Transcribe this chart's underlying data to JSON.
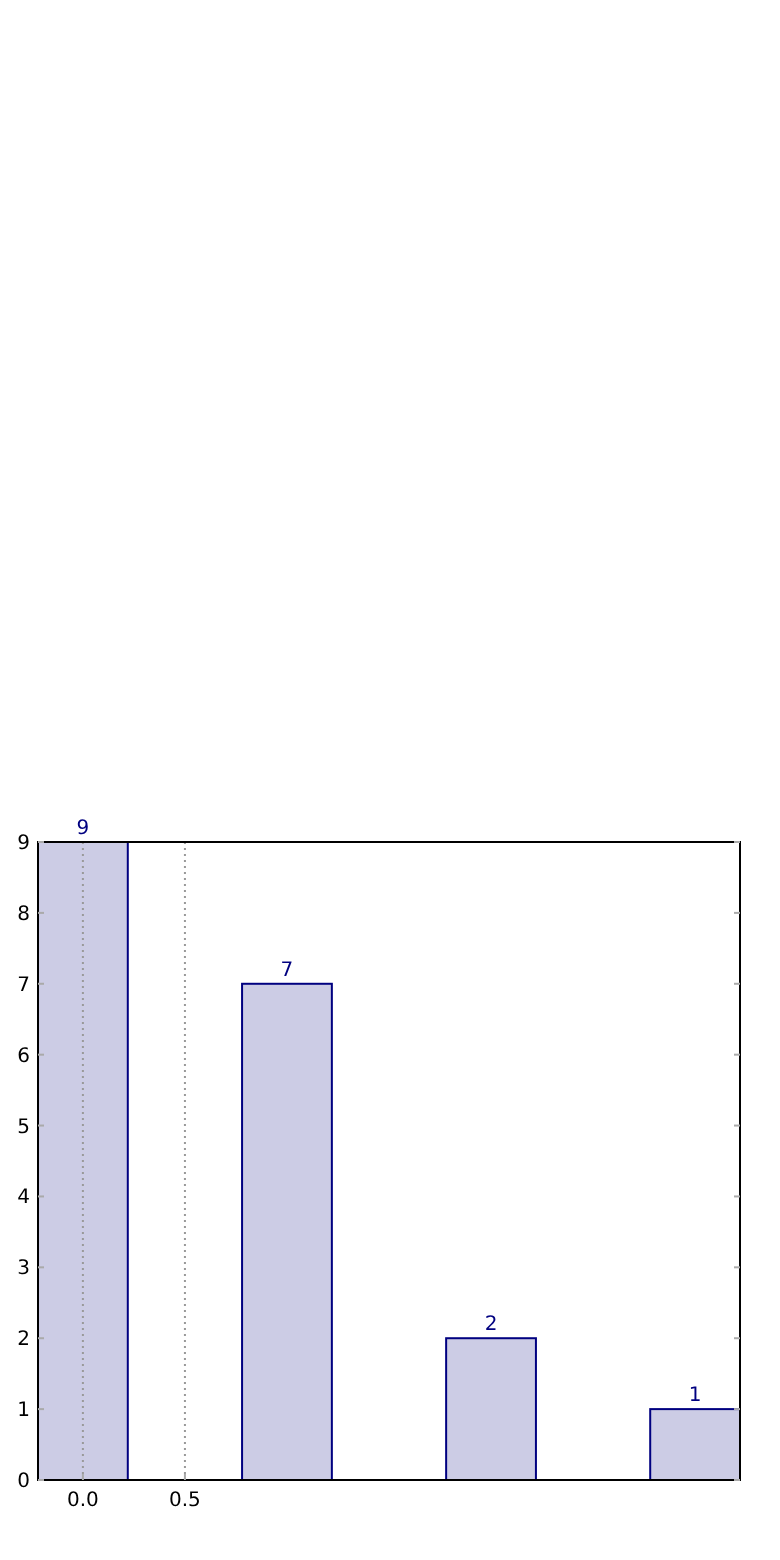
{
  "chart_data": {
    "type": "bar",
    "x": [
      0,
      1,
      2,
      3
    ],
    "values": [
      9,
      7,
      2,
      1
    ],
    "color": "#cccce5",
    "xlim": [
      -0.22,
      3.22
    ],
    "xticks": [
      {
        "value": 0,
        "label": "0.0"
      },
      {
        "value": 0.5,
        "label": "0.5"
      }
    ],
    "ylim": [
      0,
      9
    ],
    "yticks": [
      0,
      1,
      2,
      3,
      4,
      5,
      6,
      7,
      8,
      9
    ],
    "grid": "x",
    "data_labels": true
  }
}
